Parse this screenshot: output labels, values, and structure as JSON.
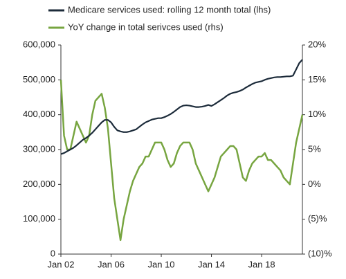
{
  "chart_data": {
    "type": "line",
    "x": [
      "Jan 02",
      "Apr 02",
      "Jul 02",
      "Oct 02",
      "Jan 03",
      "Apr 03",
      "Jul 03",
      "Oct 03",
      "Jan 04",
      "Apr 04",
      "Jul 04",
      "Oct 04",
      "Jan 05",
      "Apr 05",
      "Jul 05",
      "Oct 05",
      "Jan 06",
      "Apr 06",
      "Jul 06",
      "Oct 06",
      "Jan 07",
      "Apr 07",
      "Jul 07",
      "Oct 07",
      "Jan 08",
      "Apr 08",
      "Jul 08",
      "Oct 08",
      "Jan 09",
      "Apr 09",
      "Jul 09",
      "Oct 09",
      "Jan 10",
      "Apr 10",
      "Jul 10",
      "Oct 10",
      "Jan 11",
      "Apr 11",
      "Jul 11",
      "Oct 11",
      "Jan 12",
      "Apr 12",
      "Jul 12",
      "Oct 12",
      "Jan 13",
      "Apr 13",
      "Jul 13",
      "Oct 13",
      "Jan 14",
      "Apr 14",
      "Jul 14",
      "Oct 14",
      "Jan 15",
      "Apr 15",
      "Jul 15",
      "Oct 15",
      "Jan 16",
      "Apr 16",
      "Jul 16",
      "Oct 16",
      "Jan 17",
      "Apr 17",
      "Jul 17",
      "Oct 17",
      "Jan 18",
      "Apr 18",
      "Jul 18",
      "Oct 18",
      "Jan 19",
      "Apr 19",
      "Jul 19",
      "Oct 19",
      "Jan 20",
      "Apr 20",
      "Jul 20",
      "Oct 20",
      "Jan 21",
      "Apr 21"
    ],
    "xticks": [
      "Jan 02",
      "Jan 06",
      "Jan 10",
      "Jan 14",
      "Jan 18"
    ],
    "series": [
      {
        "name": "Medicare services used: rolling 12 month total (lhs)",
        "color": "#1c2b3a",
        "axis": "y",
        "values": [
          287000,
          290000,
          295000,
          300000,
          305000,
          312000,
          320000,
          328000,
          333000,
          340000,
          348000,
          358000,
          368000,
          378000,
          385000,
          385000,
          378000,
          365000,
          355000,
          352000,
          350000,
          350000,
          352000,
          355000,
          358000,
          365000,
          372000,
          378000,
          382000,
          386000,
          388000,
          390000,
          390000,
          393000,
          397000,
          402000,
          408000,
          415000,
          422000,
          426000,
          427000,
          426000,
          424000,
          422000,
          422000,
          423000,
          425000,
          428000,
          425000,
          430000,
          436000,
          442000,
          448000,
          455000,
          460000,
          463000,
          465000,
          468000,
          472000,
          478000,
          483000,
          488000,
          492000,
          494000,
          496000,
          500000,
          503000,
          505000,
          507000,
          508000,
          508000,
          509000,
          510000,
          510000,
          512000,
          530000,
          548000,
          558000
        ]
      },
      {
        "name": "YoY change in total serivces used (rhs)",
        "color": "#77a540",
        "axis": "y2",
        "values": [
          15,
          7,
          5,
          5,
          7,
          9,
          8,
          7,
          6,
          7,
          10,
          12,
          12.5,
          13,
          11,
          8,
          3,
          -2,
          -5,
          -8,
          -5,
          -3,
          -1,
          0.5,
          1.5,
          2.5,
          3,
          4,
          4,
          5,
          6,
          6,
          6,
          5,
          3.5,
          2.5,
          3,
          4.5,
          5.5,
          6,
          6,
          6,
          5,
          3,
          2,
          1,
          0,
          -1,
          0,
          1,
          2.5,
          4,
          4.5,
          5,
          5.5,
          5.5,
          5,
          3,
          1,
          0.5,
          2,
          3,
          3.5,
          4,
          4,
          4.5,
          3.5,
          3.5,
          3,
          2.5,
          2,
          1,
          0.5,
          0,
          3,
          6,
          8,
          10
        ]
      }
    ],
    "ylim": [
      0,
      600000
    ],
    "yticks": [
      0,
      {
        "value": 100000,
        "label": "100,000"
      },
      {
        "value": 200000,
        "label": "200,000"
      },
      {
        "value": 300000,
        "label": "300,000"
      },
      {
        "value": 400000,
        "label": "400,000"
      },
      {
        "value": 500000,
        "label": "500,000"
      },
      {
        "value": 600000,
        "label": "600,000"
      }
    ],
    "y2lim": [
      -10,
      20
    ],
    "y2ticks": [
      {
        "value": -10,
        "label": "(10)%"
      },
      {
        "value": -5,
        "label": "(5)%"
      },
      {
        "value": 0,
        "label": "0%"
      },
      {
        "value": 5,
        "label": "5%"
      },
      {
        "value": 10,
        "label": "10%"
      },
      {
        "value": 15,
        "label": "15%"
      },
      {
        "value": 20,
        "label": "20%"
      }
    ],
    "grid": false,
    "legend": "top"
  }
}
